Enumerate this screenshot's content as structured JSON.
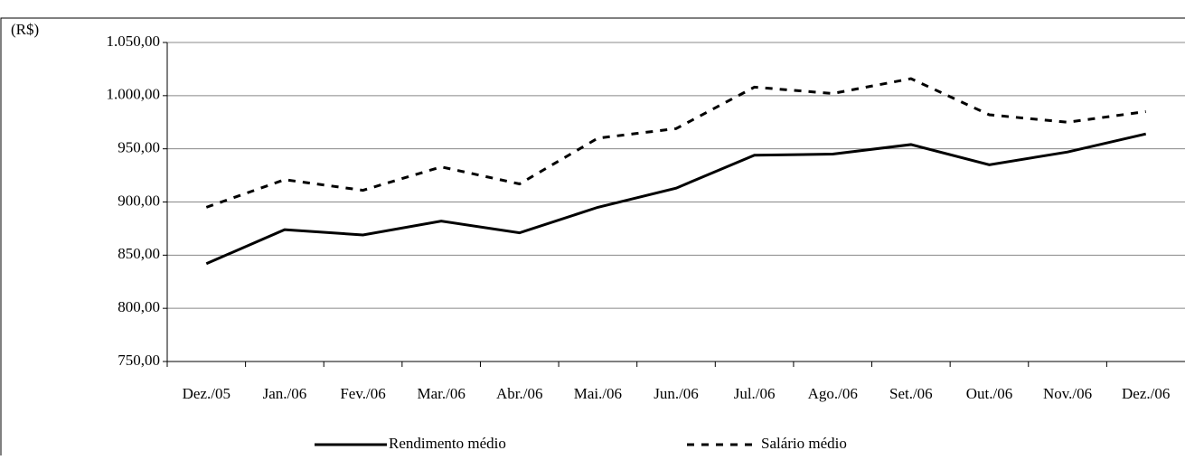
{
  "chart_data": {
    "type": "line",
    "y_label": "(R$)",
    "categories": [
      "Dez./05",
      "Jan./06",
      "Fev./06",
      "Mar./06",
      "Abr./06",
      "Mai./06",
      "Jun./06",
      "Jul./06",
      "Ago./06",
      "Set./06",
      "Out./06",
      "Nov./06",
      "Dez./06"
    ],
    "series": [
      {
        "name": "Rendimento médio",
        "color": "#000000",
        "dash": "solid",
        "values": [
          842,
          874,
          869,
          882,
          871,
          895,
          913,
          944,
          945,
          954,
          935,
          947,
          964
        ]
      },
      {
        "name": "Salário médio",
        "color": "#000000",
        "dash": "dashed",
        "values": [
          895,
          921,
          911,
          933,
          917,
          960,
          969,
          1008,
          1002,
          1016,
          982,
          975,
          985
        ]
      }
    ],
    "ylim": [
      750,
      1050
    ],
    "yticks": [
      {
        "value": 750,
        "label": "750,00"
      },
      {
        "value": 800,
        "label": "800,00"
      },
      {
        "value": 850,
        "label": "850,00"
      },
      {
        "value": 900,
        "label": "900,00"
      },
      {
        "value": 950,
        "label": "950,00"
      },
      {
        "value": 1000,
        "label": "1.000,00"
      },
      {
        "value": 1050,
        "label": "1.050,00"
      }
    ],
    "grid": true,
    "legend": "bottom"
  }
}
